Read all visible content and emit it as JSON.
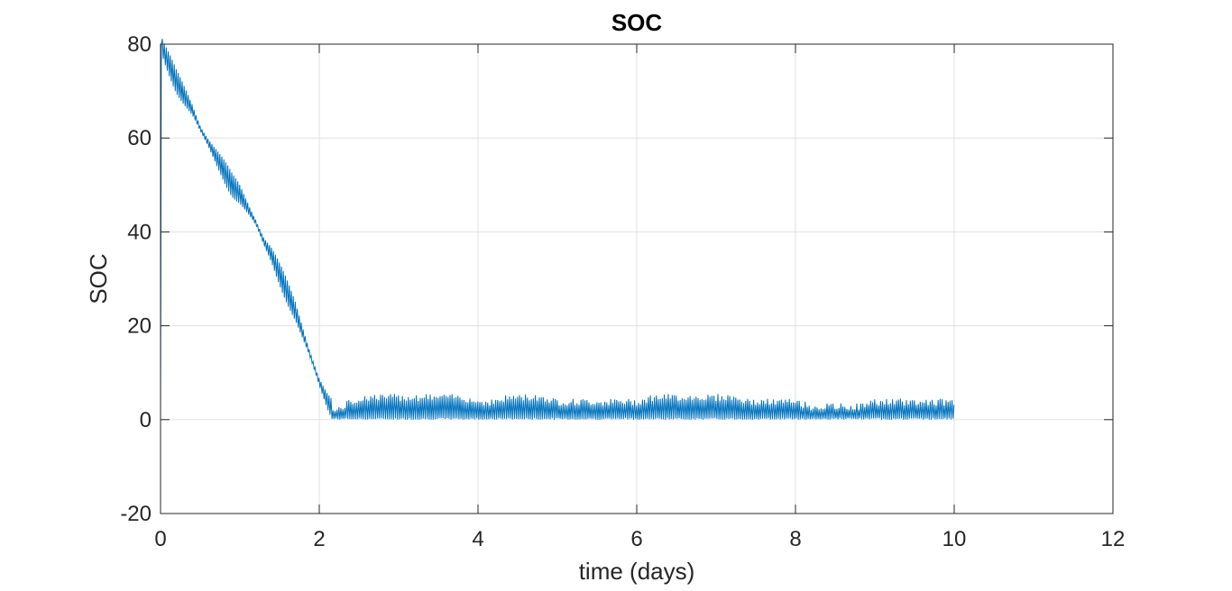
{
  "chart_data": {
    "type": "line",
    "title": "SOC",
    "xlabel": "time (days)",
    "ylabel": "SOC",
    "xlim": [
      0,
      12
    ],
    "ylim": [
      -20,
      80
    ],
    "xticks": [
      0,
      2,
      4,
      6,
      8,
      10,
      12
    ],
    "yticks": [
      -20,
      0,
      20,
      40,
      60,
      80
    ],
    "grid": true,
    "line_color": "#0072BD",
    "series": [
      {
        "x": [
          0,
          0.01,
          0.05,
          0.1,
          0.15,
          0.2,
          0.3,
          0.4,
          0.5,
          0.6,
          0.7,
          0.8,
          0.9,
          1.0,
          1.1,
          1.2,
          1.3,
          1.4,
          1.5,
          1.6,
          1.7,
          1.8,
          1.9,
          2.0,
          2.1,
          2.2,
          2.4,
          2.6,
          2.8,
          3.0,
          3.2,
          3.4,
          3.6,
          3.8,
          4.0,
          4.2,
          4.4,
          4.6,
          4.8,
          5.0,
          5.2,
          5.4,
          5.6,
          5.8,
          6.0,
          6.2,
          6.4,
          6.6,
          6.8,
          7.0,
          7.2,
          7.4,
          7.6,
          7.8,
          8.0,
          8.2,
          8.4,
          8.6,
          8.8,
          9.0,
          9.2,
          9.4,
          9.6,
          9.8,
          10.0
        ],
        "y": [
          0,
          80,
          78,
          76,
          74,
          72,
          69,
          66,
          62,
          59,
          56,
          53,
          50,
          48,
          45,
          42,
          38,
          35,
          31,
          27,
          23,
          18,
          13,
          8,
          4,
          1,
          3,
          4,
          4,
          4,
          4,
          4,
          4,
          4,
          3,
          3,
          4,
          4,
          4,
          3,
          3,
          3,
          3,
          3,
          3,
          4,
          4,
          4,
          4,
          4,
          4,
          3,
          3,
          3,
          3,
          2,
          2,
          2,
          2,
          3,
          3,
          3,
          3,
          3,
          3
        ]
      }
    ]
  }
}
